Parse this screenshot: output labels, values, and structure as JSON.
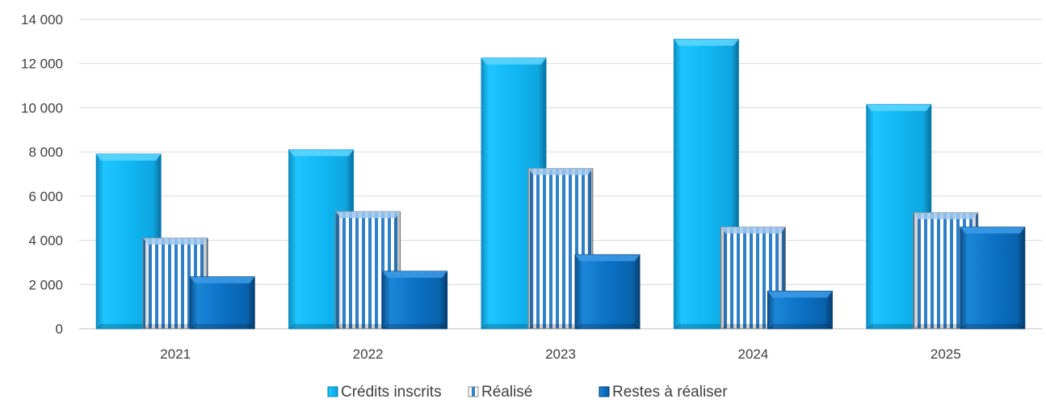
{
  "chart_data": {
    "type": "bar",
    "categories": [
      "2021",
      "2022",
      "2023",
      "2024",
      "2025"
    ],
    "series": [
      {
        "name": "Crédits inscrits",
        "values": [
          7900,
          8100,
          12250,
          13100,
          10150
        ],
        "color": "#11b9f2",
        "pattern": "solid-3d"
      },
      {
        "name": "Réalisé",
        "values": [
          4100,
          5300,
          7250,
          4600,
          5250
        ],
        "color": "#2f80c8",
        "pattern": "vertical-stripes"
      },
      {
        "name": "Restes à réaliser",
        "values": [
          2350,
          2600,
          3350,
          1700,
          4600
        ],
        "color": "#0a72c8",
        "pattern": "solid-3d"
      }
    ],
    "y_ticks": [
      0,
      2000,
      4000,
      6000,
      8000,
      10000,
      12000,
      14000
    ],
    "y_tick_labels": [
      "0",
      "2 000",
      "4 000",
      "6 000",
      "8 000",
      "10 000",
      "12 000",
      "14 000"
    ],
    "ylim": [
      0,
      14000
    ],
    "grid": true,
    "legend_position": "bottom-center"
  }
}
